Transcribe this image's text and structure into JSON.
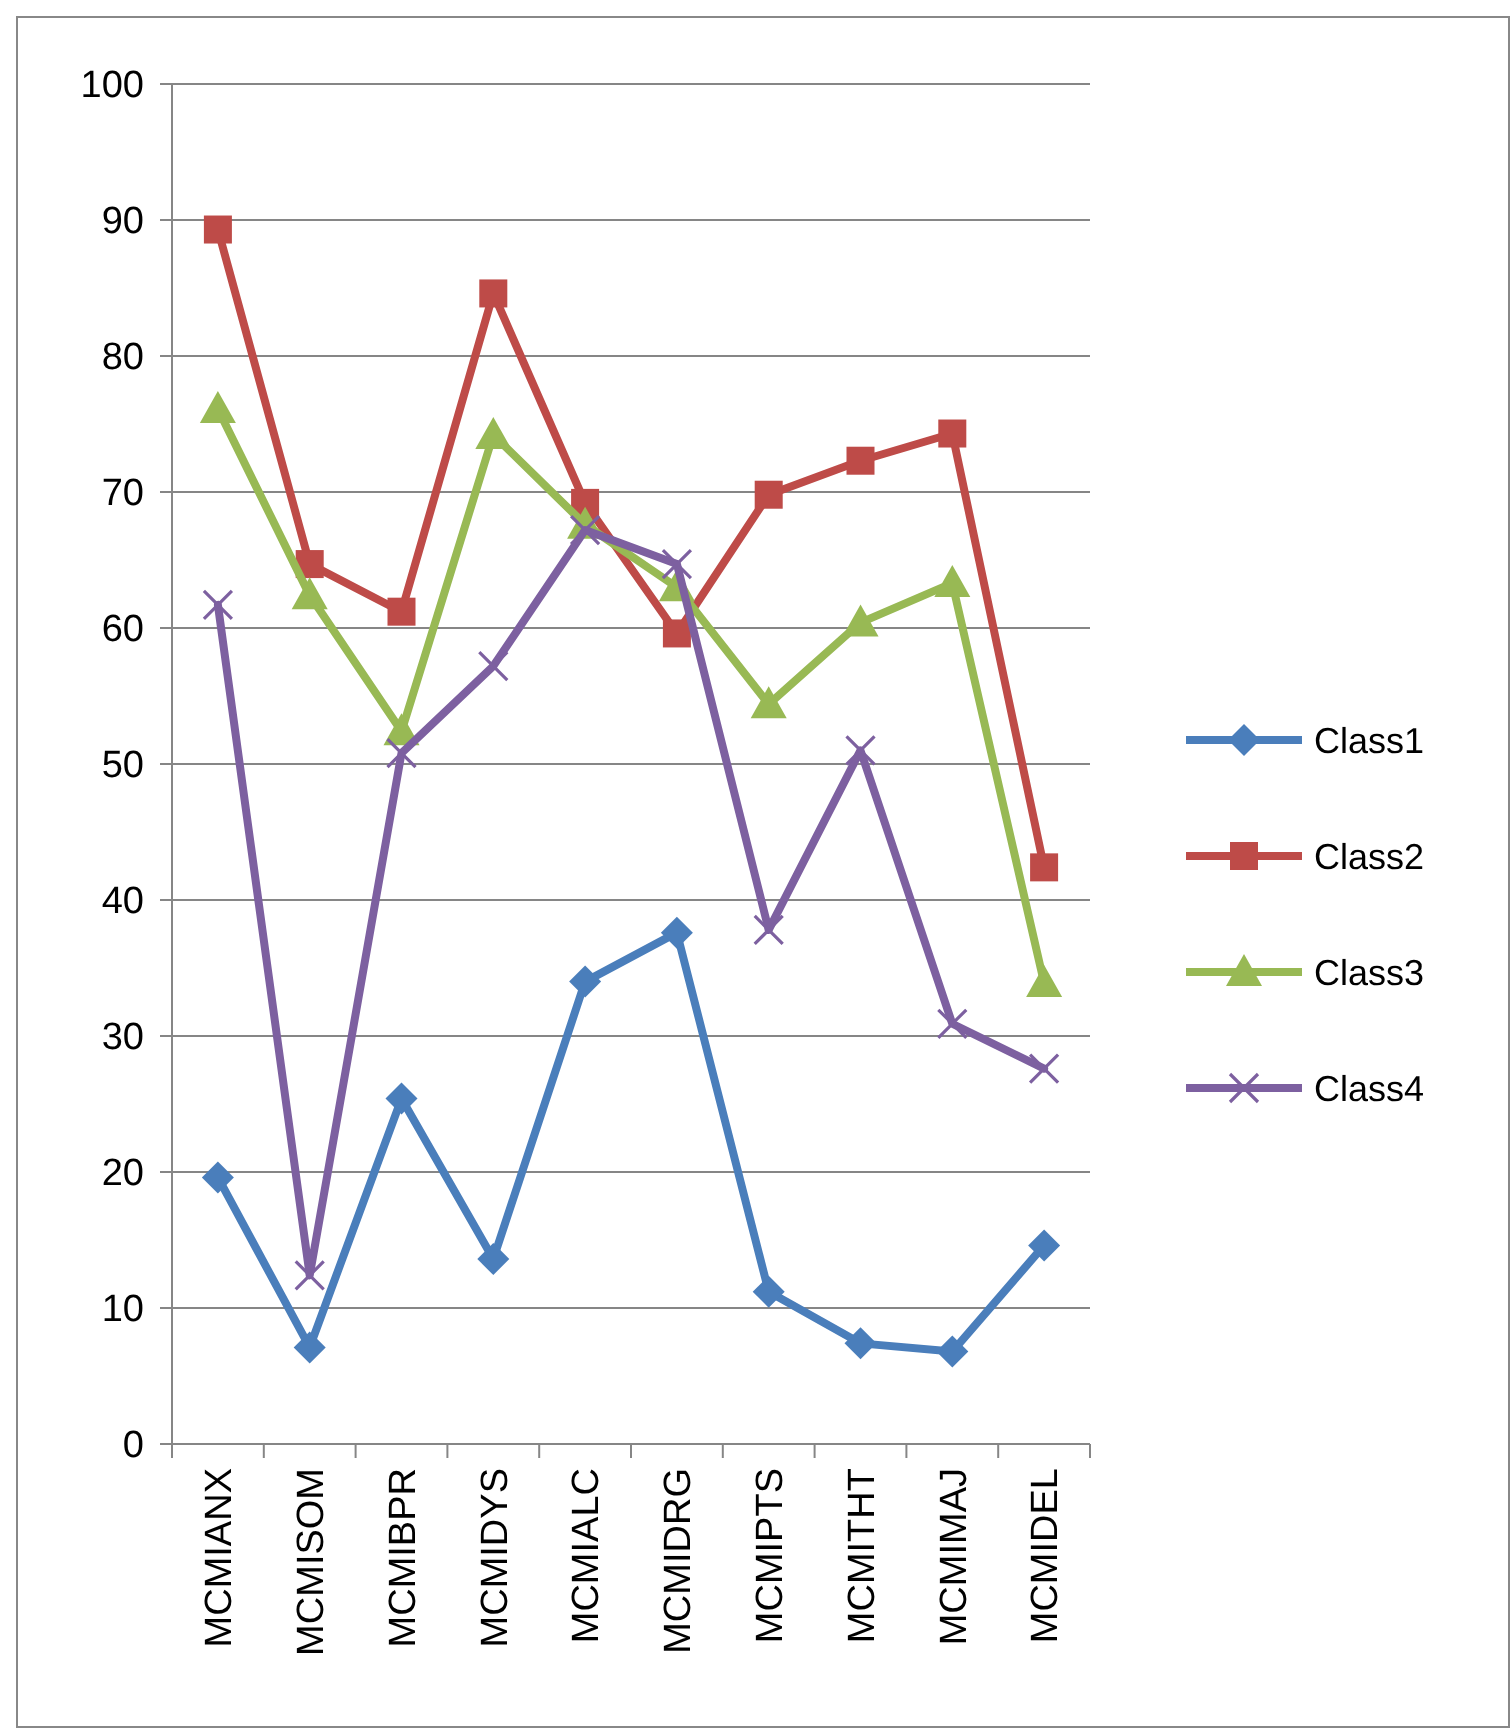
{
  "chart_data": {
    "type": "line",
    "categories": [
      "MCMIANX",
      "MCMISOM",
      "MCMIBPR",
      "MCMIDYS",
      "MCMIALC",
      "MCMIDRG",
      "MCMIPTS",
      "MCMITHT",
      "MCMIMAJ",
      "MCMIDEL"
    ],
    "series": [
      {
        "name": "Class1",
        "color": "#4a7ebb",
        "marker": "diamond",
        "values": [
          19.6,
          7.1,
          25.4,
          13.6,
          34.0,
          37.6,
          11.2,
          7.4,
          6.8,
          14.6
        ]
      },
      {
        "name": "Class2",
        "color": "#be4b48",
        "marker": "square",
        "values": [
          89.3,
          64.7,
          61.2,
          84.6,
          69.2,
          59.6,
          69.8,
          72.3,
          74.3,
          42.4
        ]
      },
      {
        "name": "Class3",
        "color": "#98b954",
        "marker": "triangle",
        "values": [
          76.1,
          62.4,
          52.4,
          74.2,
          67.6,
          63.0,
          54.4,
          60.4,
          63.3,
          33.9
        ]
      },
      {
        "name": "Class4",
        "color": "#7d60a0",
        "marker": "cross",
        "values": [
          61.7,
          12.4,
          50.8,
          57.2,
          67.2,
          64.7,
          37.8,
          51.0,
          30.9,
          27.6
        ]
      }
    ],
    "ylim": [
      0,
      100
    ],
    "yticks": [
      0,
      10,
      20,
      30,
      40,
      50,
      60,
      70,
      80,
      90,
      100
    ],
    "grid": "y",
    "legend": "right"
  }
}
